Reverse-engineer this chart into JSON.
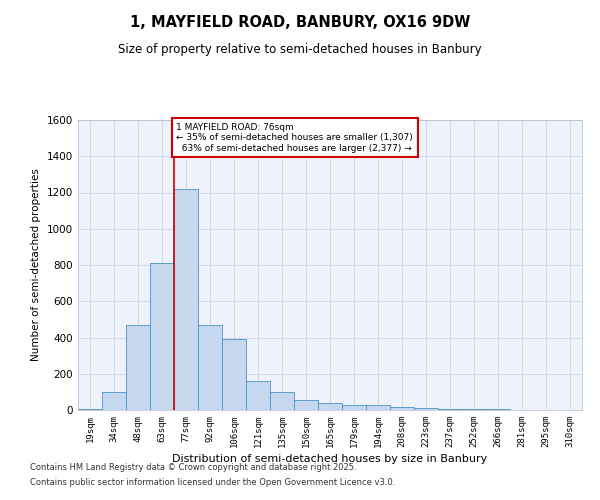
{
  "title_line1": "1, MAYFIELD ROAD, BANBURY, OX16 9DW",
  "title_line2": "Size of property relative to semi-detached houses in Banbury",
  "xlabel": "Distribution of semi-detached houses by size in Banbury",
  "ylabel": "Number of semi-detached properties",
  "categories": [
    "19sqm",
    "34sqm",
    "48sqm",
    "63sqm",
    "77sqm",
    "92sqm",
    "106sqm",
    "121sqm",
    "135sqm",
    "150sqm",
    "165sqm",
    "179sqm",
    "194sqm",
    "208sqm",
    "223sqm",
    "237sqm",
    "252sqm",
    "266sqm",
    "281sqm",
    "295sqm",
    "310sqm"
  ],
  "values": [
    5,
    100,
    470,
    810,
    1220,
    470,
    390,
    160,
    100,
    55,
    40,
    30,
    25,
    15,
    10,
    8,
    5,
    3,
    2,
    2,
    1
  ],
  "bar_color": "#c5d8ee",
  "bar_edge_color": "#4a90c4",
  "vline_color": "#cc0000",
  "vline_bin_index": 4,
  "property_name": "1 MAYFIELD ROAD: 76sqm",
  "pct_smaller": 35,
  "count_smaller": 1307,
  "pct_larger": 63,
  "count_larger": 2377,
  "annotation_box_color": "#cc0000",
  "ylim": [
    0,
    1600
  ],
  "yticks": [
    0,
    200,
    400,
    600,
    800,
    1000,
    1200,
    1400,
    1600
  ],
  "footnote_line1": "Contains HM Land Registry data © Crown copyright and database right 2025.",
  "footnote_line2": "Contains public sector information licensed under the Open Government Licence v3.0.",
  "background_color": "#eef2fb",
  "grid_color": "#c8cfe8"
}
